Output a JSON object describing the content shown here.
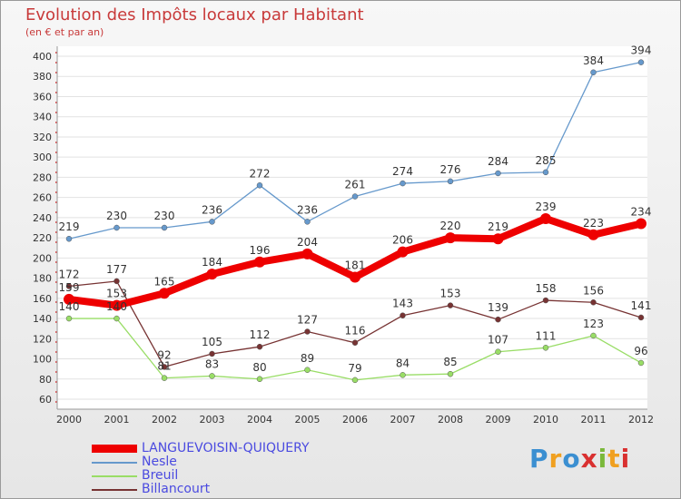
{
  "title": "Evolution des Impôts locaux par Habitant",
  "subtitle": "(en € et par an)",
  "logo": {
    "text": "Proxiti",
    "letter_colors": [
      "#3b8fd1",
      "#f0a020",
      "#3b8fd1",
      "#d93030",
      "#7ab83a",
      "#f0a020",
      "#d93030"
    ]
  },
  "chart_data": {
    "type": "line",
    "title": "Evolution des Impôts locaux par Habitant",
    "subtitle": "(en € et par an)",
    "xlabel": "",
    "ylabel": "",
    "ylim": [
      60,
      400
    ],
    "y_ticks": [
      60,
      80,
      100,
      120,
      140,
      160,
      180,
      200,
      220,
      240,
      260,
      280,
      300,
      320,
      340,
      360,
      380,
      400
    ],
    "x": [
      "2000",
      "2001",
      "2002",
      "2003",
      "2004",
      "2005",
      "2006",
      "2007",
      "2008",
      "2009",
      "2010",
      "2011",
      "2012"
    ],
    "grid": "horizontal",
    "legend_position": "bottom-left",
    "series": [
      {
        "name": "LANGUEVOISIN-QUIQUERY",
        "color": "#ee0000",
        "width": "thick",
        "values": [
          159,
          153,
          165,
          184,
          196,
          204,
          181,
          206,
          220,
          219,
          239,
          223,
          234
        ]
      },
      {
        "name": "Nesle",
        "color": "#6699cc",
        "width": "thin",
        "values": [
          219,
          230,
          230,
          236,
          272,
          236,
          261,
          274,
          276,
          284,
          285,
          384,
          394
        ]
      },
      {
        "name": "Breuil",
        "color": "#99dd66",
        "width": "thin",
        "values": [
          140,
          140,
          81,
          83,
          80,
          89,
          79,
          84,
          85,
          107,
          111,
          123,
          96
        ]
      },
      {
        "name": "Billancourt",
        "color": "#773333",
        "width": "thin",
        "values": [
          172,
          177,
          92,
          105,
          112,
          127,
          116,
          143,
          153,
          139,
          158,
          156,
          141
        ]
      }
    ]
  }
}
